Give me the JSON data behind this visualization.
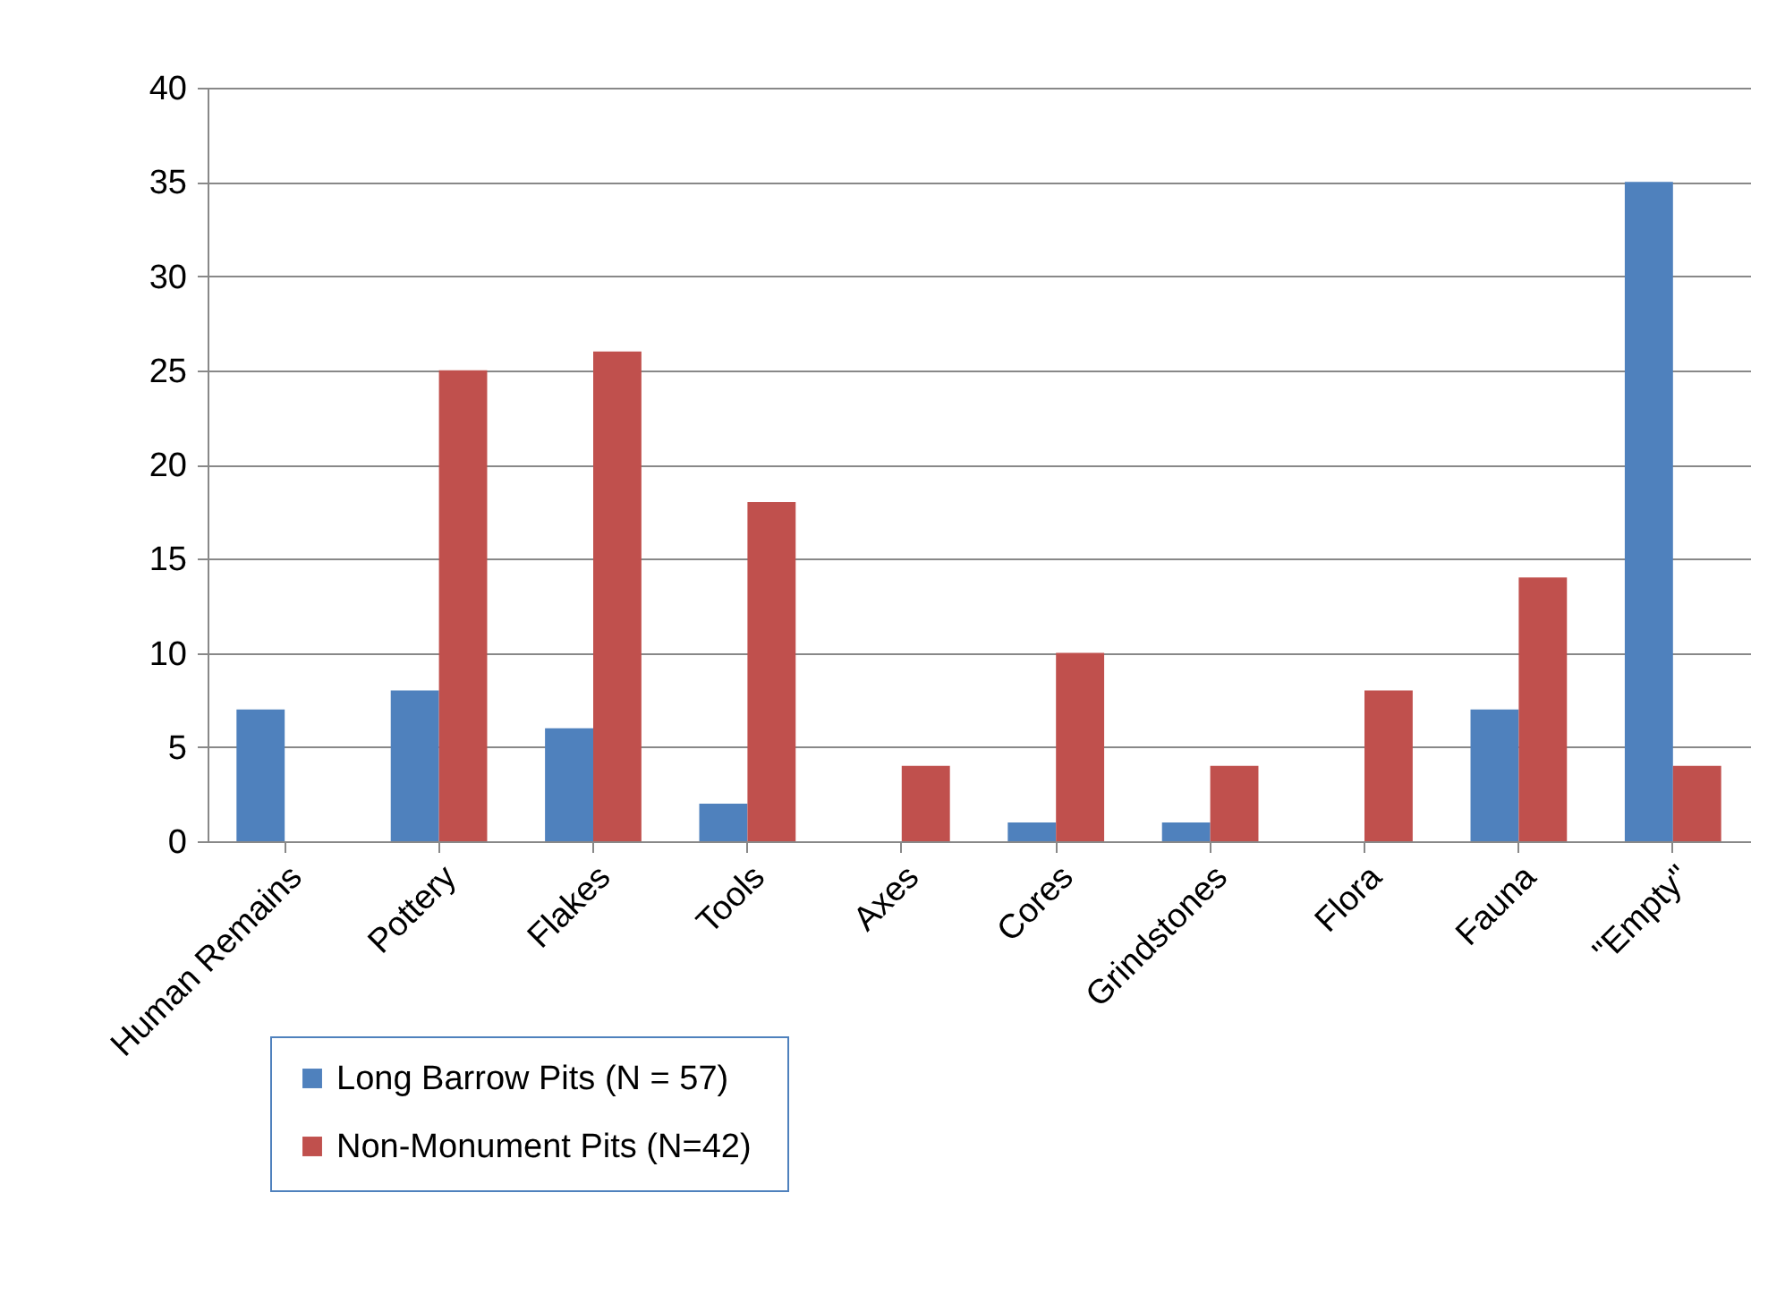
{
  "chart_data": {
    "type": "bar",
    "categories": [
      "Human Remains",
      "Pottery",
      "Flakes",
      "Tools",
      "Axes",
      "Cores",
      "Grindstones",
      "Flora",
      "Fauna",
      "\"Empty\""
    ],
    "series": [
      {
        "name": "Long Barrow Pits (N = 57)",
        "color": "#4f81bd",
        "values": [
          7,
          8,
          6,
          2,
          0,
          1,
          1,
          0,
          7,
          35
        ]
      },
      {
        "name": "Non-Monument Pits  (N=42)",
        "color": "#c0504d",
        "values": [
          0,
          25,
          26,
          18,
          4,
          10,
          4,
          8,
          14,
          4
        ]
      }
    ],
    "ylim": [
      0,
      40
    ],
    "yticks": [
      0,
      5,
      10,
      15,
      20,
      25,
      30,
      35,
      40
    ],
    "grid": "y",
    "legend": "bottom"
  }
}
